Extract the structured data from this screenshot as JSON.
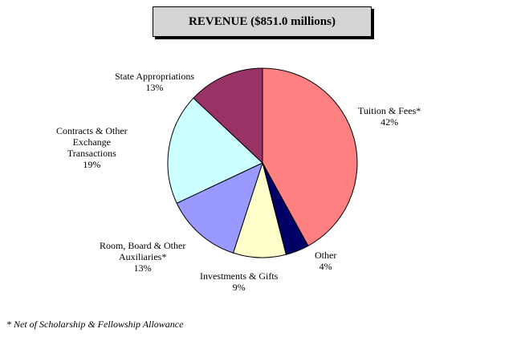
{
  "chart_data": {
    "type": "pie",
    "title": "REVENUE ($851.0 millions)",
    "slices": [
      {
        "label_lines": [
          "Tuition & Fees*"
        ],
        "pct_label": "42%",
        "value": 42,
        "color": "#ff8080"
      },
      {
        "label_lines": [
          "Other"
        ],
        "pct_label": "4%",
        "value": 4,
        "color": "#000066"
      },
      {
        "label_lines": [
          "Investments & Gifts"
        ],
        "pct_label": "9%",
        "value": 9,
        "color": "#ffffcc"
      },
      {
        "label_lines": [
          "Room, Board & Other",
          "Auxiliaries*"
        ],
        "pct_label": "13%",
        "value": 13,
        "color": "#9999ff"
      },
      {
        "label_lines": [
          "Contracts & Other",
          "Exchange",
          "Transactions"
        ],
        "pct_label": "19%",
        "value": 19,
        "color": "#ccffff"
      },
      {
        "label_lines": [
          "State Appropriations"
        ],
        "pct_label": "13%",
        "value": 13,
        "color": "#993366"
      }
    ],
    "start_angle_deg": 0,
    "direction": "clockwise"
  },
  "footnote": "* Net of Scholarship & Fellowship Allowance"
}
